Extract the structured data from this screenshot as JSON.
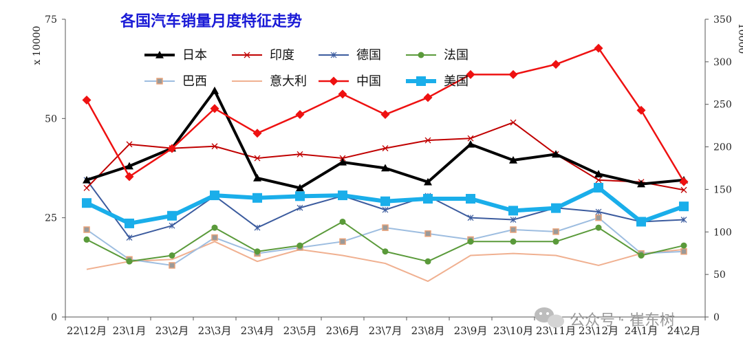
{
  "chart_data": {
    "type": "line",
    "title": "各国汽车销量月度特征走势",
    "left_axis_unit": "x 10000",
    "right_axis_unit": "10000",
    "categories": [
      "22\\12月",
      "23\\1月",
      "23\\2月",
      "23\\3月",
      "23\\4月",
      "23\\5月",
      "23\\6月",
      "23\\7月",
      "23\\8月",
      "23\\9月",
      "23\\10月",
      "23\\11月",
      "23\\12月",
      "24\\1月",
      "24\\2月"
    ],
    "ylim_left": [
      0,
      75
    ],
    "yticks_left": [
      0,
      25,
      50,
      75
    ],
    "ylim_right": [
      0,
      350
    ],
    "yticks_right": [
      0,
      50,
      100,
      150,
      200,
      250,
      300,
      350
    ],
    "grid": false,
    "legend_position": "top-left",
    "series": [
      {
        "name": "日本",
        "axis": "left",
        "color": "#000000",
        "marker": "triangle",
        "width": 4,
        "values": [
          34.5,
          38.0,
          42.5,
          57.0,
          35.0,
          32.5,
          39.0,
          37.5,
          34.0,
          43.5,
          39.5,
          41.0,
          36.0,
          33.5,
          34.5
        ]
      },
      {
        "name": "印度",
        "axis": "left",
        "color": "#c00000",
        "marker": "x",
        "width": 2,
        "values": [
          32.5,
          43.5,
          42.5,
          43.0,
          40.0,
          41.0,
          40.0,
          42.5,
          44.5,
          45.0,
          49.0,
          41.0,
          34.5,
          34.0,
          32.0
        ]
      },
      {
        "name": "德国",
        "axis": "left",
        "color": "#3b5b9e",
        "marker": "star",
        "width": 2,
        "values": [
          34.5,
          20.0,
          23.0,
          30.5,
          22.5,
          27.5,
          30.5,
          27.0,
          30.5,
          25.0,
          24.5,
          27.5,
          26.5,
          24.0,
          24.5
        ]
      },
      {
        "name": "法国",
        "axis": "left",
        "color": "#5a9a3a",
        "marker": "circle",
        "width": 2,
        "values": [
          19.5,
          14.0,
          15.5,
          22.5,
          16.5,
          18.0,
          24.0,
          16.5,
          14.0,
          19.0,
          19.0,
          19.0,
          22.5,
          15.5,
          18.0
        ]
      },
      {
        "name": "巴西",
        "axis": "left",
        "color": "#9dbde0",
        "marker": "square",
        "width": 2,
        "values": [
          22.0,
          14.5,
          13.0,
          20.0,
          16.0,
          17.5,
          19.0,
          22.5,
          21.0,
          19.5,
          22.0,
          21.5,
          25.0,
          16.0,
          16.5
        ]
      },
      {
        "name": "意大利",
        "axis": "left",
        "color": "#f0b090",
        "marker": "none",
        "width": 2,
        "values": [
          12.0,
          14.0,
          14.5,
          19.0,
          14.0,
          17.0,
          15.5,
          13.5,
          9.0,
          15.5,
          16.0,
          15.5,
          13.0,
          16.0,
          17.0
        ]
      },
      {
        "name": "中国",
        "axis": "right",
        "color": "#ee1111",
        "marker": "diamond",
        "width": 2.5,
        "values": [
          255,
          165,
          198,
          245,
          216,
          238,
          262,
          238,
          258,
          285,
          285,
          297,
          316,
          243,
          159
        ]
      },
      {
        "name": "美国",
        "axis": "right",
        "color": "#1aaeea",
        "marker": "square",
        "width": 6,
        "values": [
          134,
          110,
          119,
          143,
          140,
          142,
          143,
          136,
          139,
          139,
          125,
          128,
          152,
          112,
          130
        ]
      }
    ]
  },
  "watermark": {
    "text": "公众号 · 崔东树",
    "icon": "wechat-icon"
  }
}
